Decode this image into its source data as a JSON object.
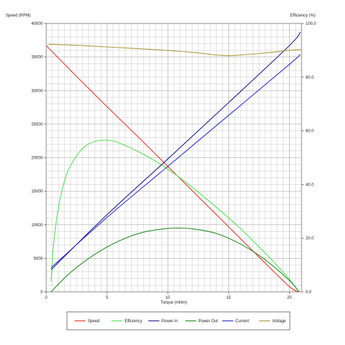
{
  "chart_data": {
    "type": "line",
    "xlabel": "Torque (mNm)",
    "ylabel_left": "Speed (RPM)",
    "ylabel_right": "Efficiency (%)",
    "xlim": [
      0,
      21
    ],
    "ylim_left": [
      0,
      40000
    ],
    "ylim_right": [
      0,
      100
    ],
    "x_ticks": [
      "0",
      "5",
      "10",
      "15",
      "20"
    ],
    "y_left_ticks": [
      "0",
      "5000",
      "10000",
      "15000",
      "20000",
      "25000",
      "30000",
      "35000",
      "40000"
    ],
    "y_right_ticks": [
      "0.0",
      "20.0",
      "40.0",
      "60.0",
      "80.0",
      "100.0"
    ],
    "grid": true,
    "legend_position": "bottom",
    "series": [
      {
        "name": "Speed",
        "color": "#e8322c",
        "x": [
          0,
          2.5,
          5,
          7.5,
          10,
          12.5,
          15,
          17.5,
          20,
          20.8
        ],
        "y": [
          36700,
          32100,
          27600,
          23200,
          18700,
          14200,
          9700,
          5200,
          800,
          0
        ]
      },
      {
        "name": "Efficiency",
        "color": "#55e055",
        "x": [
          0.4,
          0.6,
          1,
          1.5,
          2,
          3,
          4,
          5,
          6,
          8,
          10,
          12,
          14,
          16,
          18,
          19,
          20,
          20.8
        ],
        "y": [
          1500,
          7000,
          12500,
          16500,
          18800,
          21400,
          22400,
          22600,
          22200,
          20500,
          18300,
          15600,
          12600,
          9400,
          5800,
          3900,
          1900,
          0
        ]
      },
      {
        "name": "Power In",
        "color": "#1a1a8c",
        "x": [
          0.4,
          5,
          10,
          15,
          20,
          20.9
        ],
        "y": [
          3300,
          11500,
          19800,
          28200,
          36700,
          38700
        ]
      },
      {
        "name": "Power Out",
        "color": "#1f8c1f",
        "x": [
          0.4,
          2,
          4,
          6,
          8,
          10,
          11,
          12,
          14,
          16,
          18,
          20,
          20.8
        ],
        "y": [
          0,
          2900,
          5600,
          7600,
          8900,
          9450,
          9500,
          9400,
          8700,
          7100,
          4800,
          1700,
          0
        ]
      },
      {
        "name": "Current",
        "color": "#2a2ad4",
        "x": [
          0.4,
          5,
          10,
          15,
          20,
          20.9
        ],
        "y": [
          3600,
          11100,
          18700,
          26300,
          33900,
          35400
        ]
      },
      {
        "name": "Voltage",
        "color": "#a89a3c",
        "x": [
          0.2,
          3,
          6,
          9,
          12,
          14,
          15,
          16,
          18,
          20,
          21
        ],
        "y": [
          36900,
          36700,
          36400,
          36100,
          35700,
          35300,
          35200,
          35300,
          35600,
          36000,
          36100
        ]
      }
    ]
  }
}
